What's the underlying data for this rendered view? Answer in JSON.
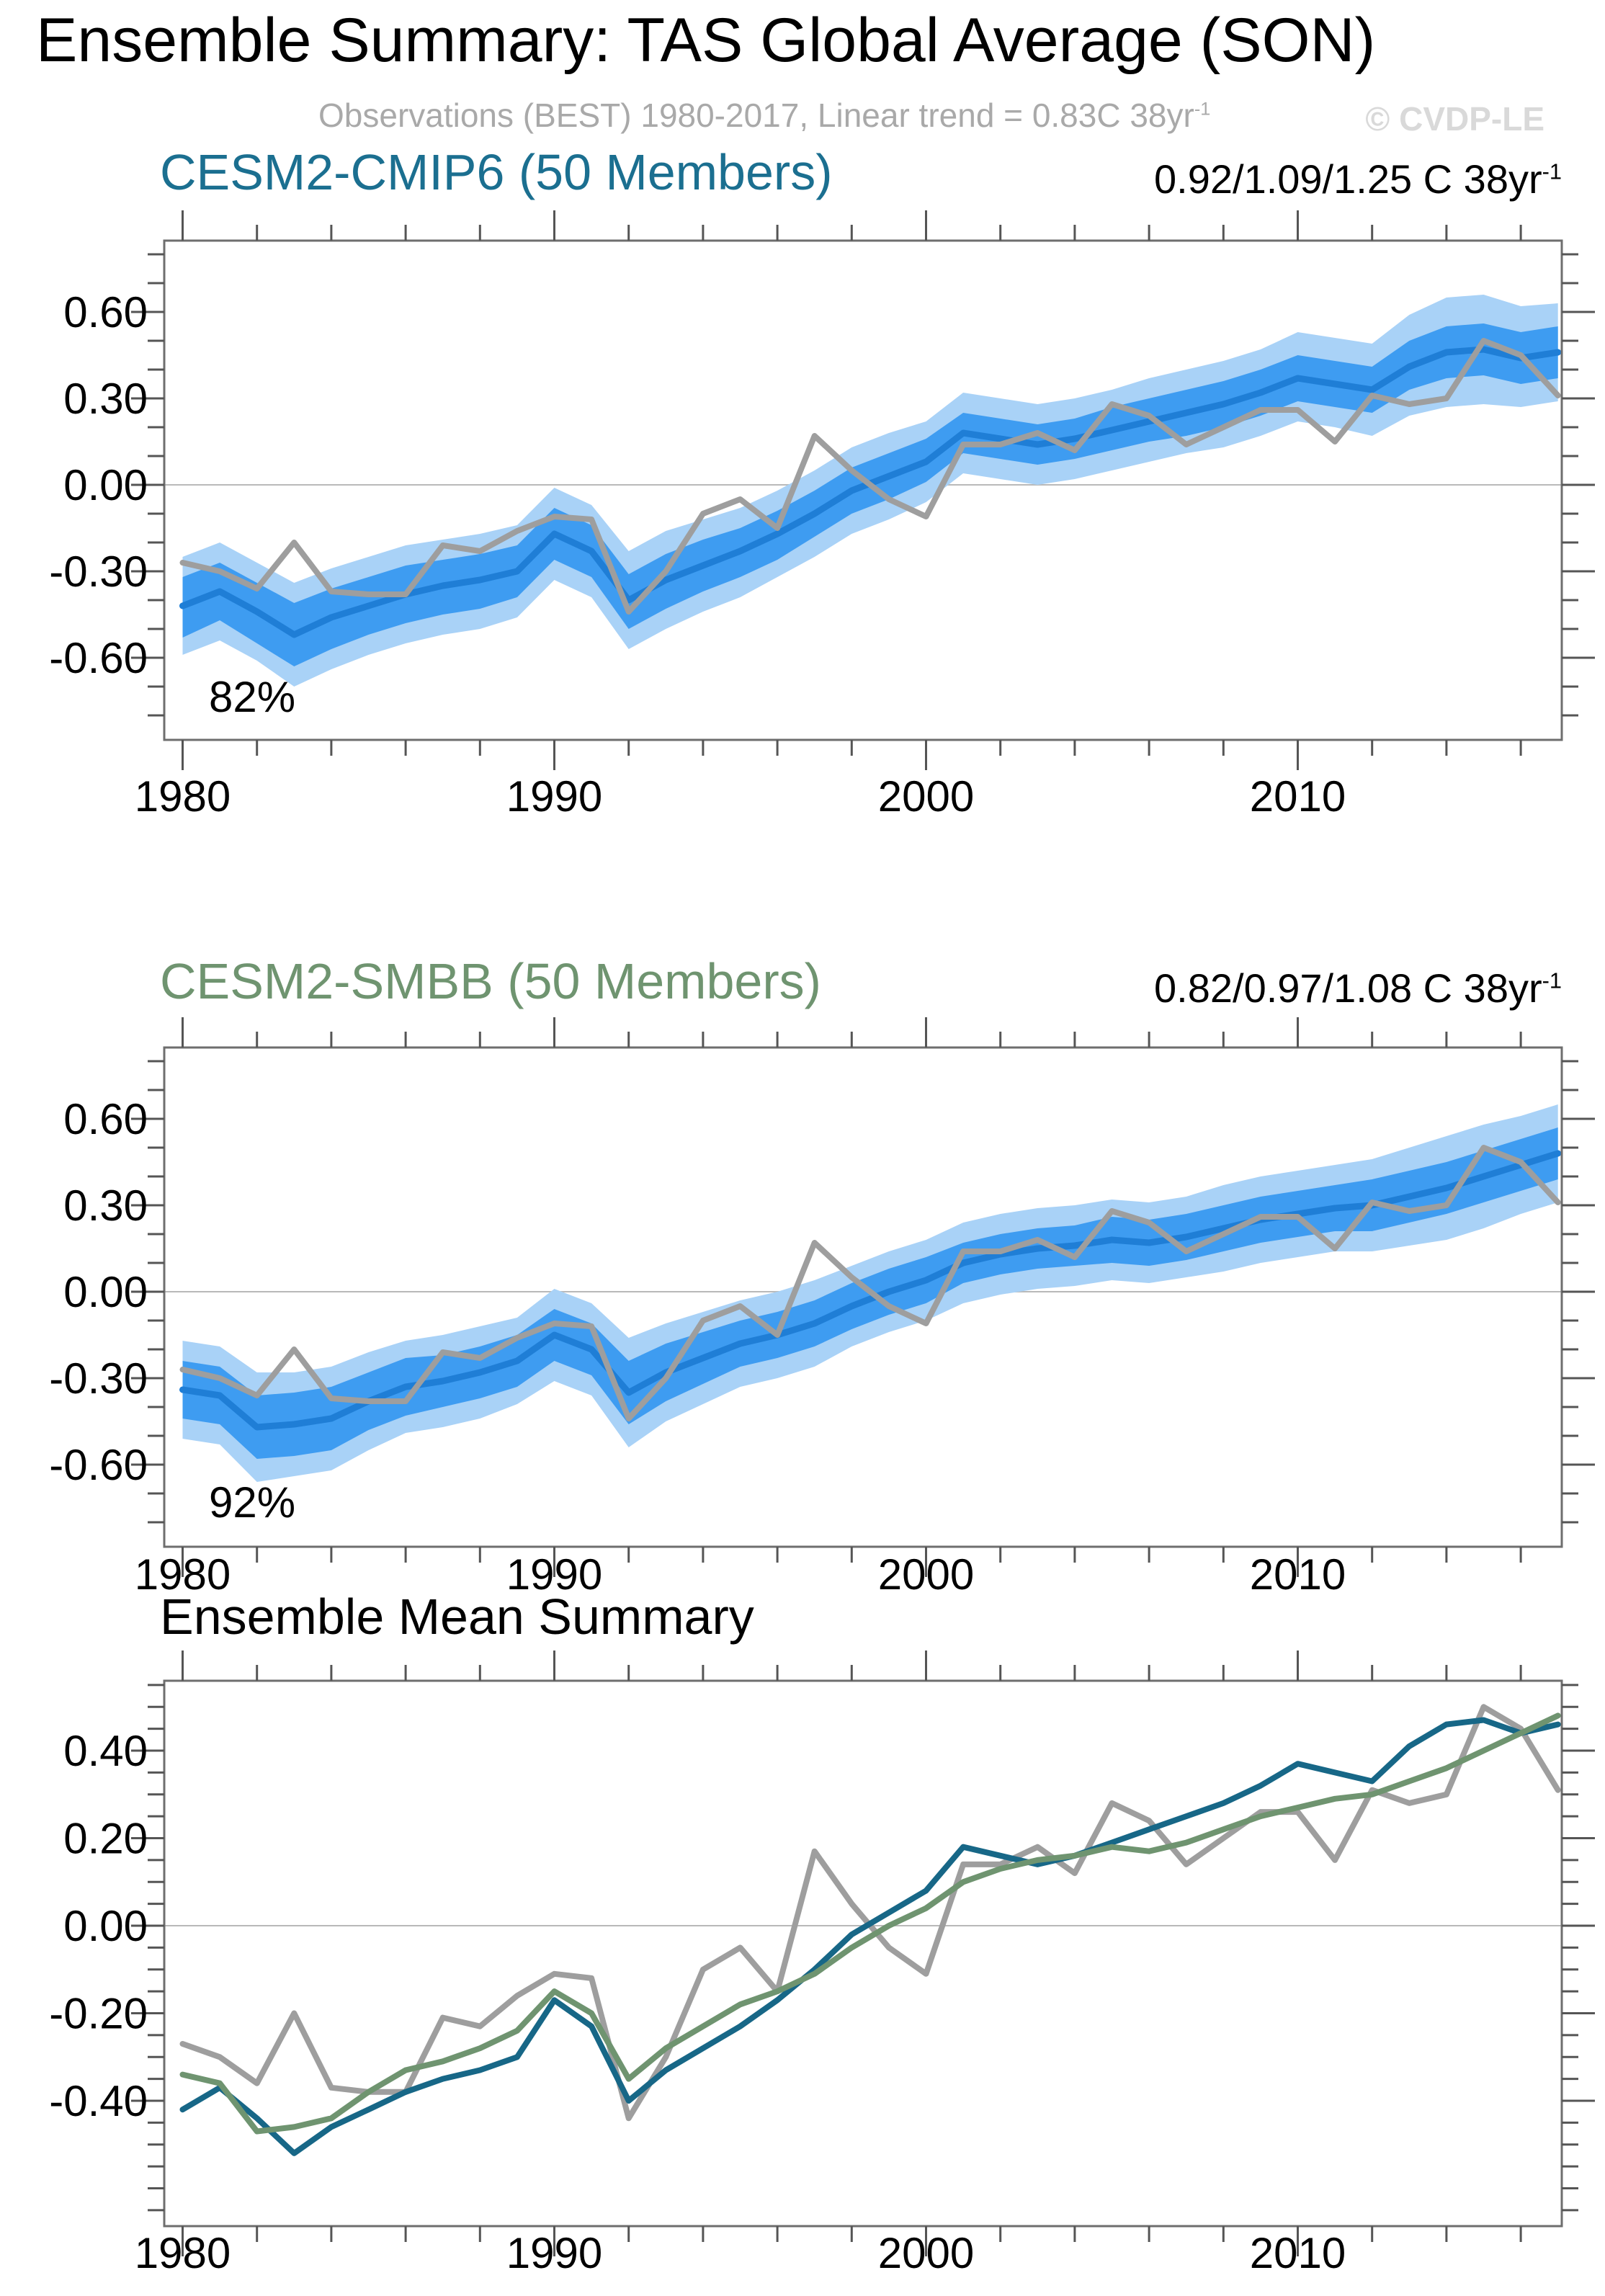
{
  "header": {
    "title": "Ensemble Summary: TAS Global Average (SON)",
    "subtitle": "Observations (BEST) 1980-2017, Linear trend = 0.83C 38yr",
    "subtitle_sup": "-1",
    "watermark": "© CVDP-LE"
  },
  "panels": [
    {
      "title": "CESM2-CMIP6 (50 Members)",
      "title_color": "#1b6f90",
      "trend": "0.92/1.09/1.25 C 38yr",
      "trend_sup": "-1",
      "annotation": "82%"
    },
    {
      "title": "CESM2-SMBB (50 Members)",
      "title_color": "#6f9470",
      "trend": "0.82/0.97/1.08 C 38yr",
      "trend_sup": "-1",
      "annotation": "92%"
    },
    {
      "title": "Ensemble Mean Summary"
    }
  ],
  "colors": {
    "outer_band": "#a9d2f7",
    "inner_band": "#3e9cf1",
    "mean_line": "#1f7ed6",
    "obs_line": "#9e9e9e",
    "cmip6_line": "#176787",
    "smbb_line": "#6f9470",
    "zero_line": "#b9b9b9",
    "frame": "#6e6e6e",
    "tick": "#555555"
  },
  "chart_data": [
    {
      "type": "area",
      "id": "cesm2-cmip6",
      "title": "CESM2-CMIP6 (50 Members)",
      "annotation": "82%",
      "x": [
        1980,
        1981,
        1982,
        1983,
        1984,
        1985,
        1986,
        1987,
        1988,
        1989,
        1990,
        1991,
        1992,
        1993,
        1994,
        1995,
        1996,
        1997,
        1998,
        1999,
        2000,
        2001,
        2002,
        2003,
        2004,
        2005,
        2006,
        2007,
        2008,
        2009,
        2010,
        2011,
        2012,
        2013,
        2014,
        2015,
        2016,
        2017
      ],
      "xticks": [
        1980,
        1990,
        2000,
        2010
      ],
      "xtick_minor_step": 2,
      "yticks": [
        0.6,
        0.3,
        0.0,
        -0.3,
        -0.6
      ],
      "ytick_labels": [
        "0.60",
        "0.30",
        "0.00",
        "-0.30",
        "-0.60"
      ],
      "ytick_minor_step": 0.1,
      "ylim": [
        -0.885,
        0.8475
      ],
      "grid_zero_line": true,
      "series": [
        {
          "name": "outer_band_high",
          "values": [
            -0.25,
            -0.2,
            -0.27,
            -0.34,
            -0.29,
            -0.25,
            -0.21,
            -0.19,
            -0.17,
            -0.14,
            -0.01,
            -0.07,
            -0.23,
            -0.16,
            -0.12,
            -0.08,
            -0.02,
            0.05,
            0.13,
            0.18,
            0.22,
            0.32,
            0.3,
            0.28,
            0.3,
            0.33,
            0.37,
            0.4,
            0.43,
            0.47,
            0.53,
            0.51,
            0.49,
            0.59,
            0.65,
            0.66,
            0.62,
            0.63
          ]
        },
        {
          "name": "outer_band_low",
          "values": [
            -0.59,
            -0.54,
            -0.61,
            -0.7,
            -0.64,
            -0.59,
            -0.55,
            -0.52,
            -0.5,
            -0.46,
            -0.33,
            -0.39,
            -0.57,
            -0.5,
            -0.44,
            -0.39,
            -0.32,
            -0.25,
            -0.17,
            -0.12,
            -0.06,
            0.04,
            0.02,
            0.0,
            0.02,
            0.05,
            0.08,
            0.11,
            0.13,
            0.17,
            0.22,
            0.2,
            0.17,
            0.24,
            0.27,
            0.28,
            0.27,
            0.29
          ]
        },
        {
          "name": "inner_band_high",
          "values": [
            -0.32,
            -0.27,
            -0.34,
            -0.41,
            -0.36,
            -0.32,
            -0.28,
            -0.26,
            -0.24,
            -0.21,
            -0.08,
            -0.14,
            -0.31,
            -0.24,
            -0.19,
            -0.15,
            -0.09,
            -0.02,
            0.06,
            0.11,
            0.16,
            0.25,
            0.23,
            0.21,
            0.23,
            0.27,
            0.3,
            0.33,
            0.36,
            0.4,
            0.45,
            0.43,
            0.41,
            0.5,
            0.55,
            0.56,
            0.53,
            0.55
          ]
        },
        {
          "name": "inner_band_low",
          "values": [
            -0.53,
            -0.47,
            -0.55,
            -0.63,
            -0.57,
            -0.52,
            -0.48,
            -0.45,
            -0.43,
            -0.39,
            -0.26,
            -0.32,
            -0.5,
            -0.43,
            -0.37,
            -0.32,
            -0.26,
            -0.18,
            -0.1,
            -0.05,
            0.01,
            0.11,
            0.09,
            0.07,
            0.09,
            0.12,
            0.15,
            0.17,
            0.2,
            0.24,
            0.29,
            0.27,
            0.25,
            0.33,
            0.37,
            0.38,
            0.35,
            0.37
          ]
        },
        {
          "name": "ensemble_mean",
          "values": [
            -0.42,
            -0.37,
            -0.44,
            -0.52,
            -0.46,
            -0.42,
            -0.38,
            -0.35,
            -0.33,
            -0.3,
            -0.17,
            -0.23,
            -0.4,
            -0.33,
            -0.28,
            -0.23,
            -0.17,
            -0.1,
            -0.02,
            0.03,
            0.08,
            0.18,
            0.16,
            0.14,
            0.16,
            0.19,
            0.22,
            0.25,
            0.28,
            0.32,
            0.37,
            0.35,
            0.33,
            0.41,
            0.46,
            0.47,
            0.44,
            0.46
          ]
        },
        {
          "name": "observations_best",
          "values": [
            -0.27,
            -0.3,
            -0.36,
            -0.2,
            -0.37,
            -0.38,
            -0.38,
            -0.21,
            -0.23,
            -0.16,
            -0.11,
            -0.12,
            -0.44,
            -0.3,
            -0.1,
            -0.05,
            -0.15,
            0.17,
            0.05,
            -0.05,
            -0.11,
            0.14,
            0.14,
            0.18,
            0.12,
            0.28,
            0.24,
            0.14,
            0.2,
            0.26,
            0.26,
            0.15,
            0.31,
            0.28,
            0.3,
            0.5,
            0.45,
            0.31
          ]
        }
      ]
    },
    {
      "type": "area",
      "id": "cesm2-smbb",
      "title": "CESM2-SMBB (50 Members)",
      "annotation": "92%",
      "x": [
        1980,
        1981,
        1982,
        1983,
        1984,
        1985,
        1986,
        1987,
        1988,
        1989,
        1990,
        1991,
        1992,
        1993,
        1994,
        1995,
        1996,
        1997,
        1998,
        1999,
        2000,
        2001,
        2002,
        2003,
        2004,
        2005,
        2006,
        2007,
        2008,
        2009,
        2010,
        2011,
        2012,
        2013,
        2014,
        2015,
        2016,
        2017
      ],
      "xticks": [
        1980,
        1990,
        2000,
        2010
      ],
      "xtick_minor_step": 2,
      "yticks": [
        0.6,
        0.3,
        0.0,
        -0.3,
        -0.6
      ],
      "ytick_labels": [
        "0.60",
        "0.30",
        "0.00",
        "-0.30",
        "-0.60"
      ],
      "ytick_minor_step": 0.1,
      "ylim": [
        -0.885,
        0.8475
      ],
      "grid_zero_line": true,
      "series": [
        {
          "name": "outer_band_high",
          "values": [
            -0.17,
            -0.19,
            -0.28,
            -0.28,
            -0.26,
            -0.21,
            -0.17,
            -0.15,
            -0.12,
            -0.09,
            0.01,
            -0.04,
            -0.16,
            -0.11,
            -0.07,
            -0.03,
            0.0,
            0.04,
            0.09,
            0.14,
            0.18,
            0.24,
            0.27,
            0.29,
            0.3,
            0.32,
            0.31,
            0.33,
            0.37,
            0.4,
            0.42,
            0.44,
            0.46,
            0.5,
            0.54,
            0.58,
            0.61,
            0.65
          ]
        },
        {
          "name": "outer_band_low",
          "values": [
            -0.51,
            -0.53,
            -0.66,
            -0.64,
            -0.62,
            -0.55,
            -0.49,
            -0.47,
            -0.44,
            -0.39,
            -0.31,
            -0.36,
            -0.54,
            -0.45,
            -0.39,
            -0.33,
            -0.3,
            -0.26,
            -0.19,
            -0.14,
            -0.1,
            -0.04,
            -0.01,
            0.01,
            0.02,
            0.04,
            0.03,
            0.05,
            0.07,
            0.1,
            0.12,
            0.14,
            0.14,
            0.16,
            0.18,
            0.22,
            0.27,
            0.31
          ]
        },
        {
          "name": "inner_band_high",
          "values": [
            -0.24,
            -0.26,
            -0.36,
            -0.35,
            -0.33,
            -0.28,
            -0.23,
            -0.22,
            -0.19,
            -0.15,
            -0.06,
            -0.11,
            -0.24,
            -0.18,
            -0.14,
            -0.1,
            -0.07,
            -0.03,
            0.03,
            0.08,
            0.12,
            0.17,
            0.2,
            0.22,
            0.23,
            0.26,
            0.25,
            0.27,
            0.3,
            0.33,
            0.35,
            0.37,
            0.39,
            0.42,
            0.45,
            0.49,
            0.53,
            0.57
          ]
        },
        {
          "name": "inner_band_low",
          "values": [
            -0.44,
            -0.46,
            -0.58,
            -0.57,
            -0.55,
            -0.48,
            -0.43,
            -0.4,
            -0.37,
            -0.33,
            -0.24,
            -0.29,
            -0.46,
            -0.38,
            -0.32,
            -0.26,
            -0.23,
            -0.19,
            -0.13,
            -0.08,
            -0.04,
            0.03,
            0.06,
            0.08,
            0.09,
            0.1,
            0.09,
            0.11,
            0.14,
            0.17,
            0.19,
            0.21,
            0.21,
            0.24,
            0.27,
            0.31,
            0.35,
            0.39
          ]
        },
        {
          "name": "ensemble_mean",
          "values": [
            -0.34,
            -0.36,
            -0.47,
            -0.46,
            -0.44,
            -0.38,
            -0.33,
            -0.31,
            -0.28,
            -0.24,
            -0.15,
            -0.2,
            -0.35,
            -0.28,
            -0.23,
            -0.18,
            -0.15,
            -0.11,
            -0.05,
            0.0,
            0.04,
            0.1,
            0.13,
            0.15,
            0.16,
            0.18,
            0.17,
            0.19,
            0.22,
            0.25,
            0.27,
            0.29,
            0.3,
            0.33,
            0.36,
            0.4,
            0.44,
            0.48
          ]
        },
        {
          "name": "observations_best",
          "values": [
            -0.27,
            -0.3,
            -0.36,
            -0.2,
            -0.37,
            -0.38,
            -0.38,
            -0.21,
            -0.23,
            -0.16,
            -0.11,
            -0.12,
            -0.44,
            -0.3,
            -0.1,
            -0.05,
            -0.15,
            0.17,
            0.05,
            -0.05,
            -0.11,
            0.14,
            0.14,
            0.18,
            0.12,
            0.28,
            0.24,
            0.14,
            0.2,
            0.26,
            0.26,
            0.15,
            0.31,
            0.28,
            0.3,
            0.5,
            0.45,
            0.31
          ]
        }
      ]
    },
    {
      "type": "line",
      "id": "ensemble-mean-summary",
      "title": "Ensemble Mean Summary",
      "x": [
        1980,
        1981,
        1982,
        1983,
        1984,
        1985,
        1986,
        1987,
        1988,
        1989,
        1990,
        1991,
        1992,
        1993,
        1994,
        1995,
        1996,
        1997,
        1998,
        1999,
        2000,
        2001,
        2002,
        2003,
        2004,
        2005,
        2006,
        2007,
        2008,
        2009,
        2010,
        2011,
        2012,
        2013,
        2014,
        2015,
        2016,
        2017
      ],
      "xticks": [
        1980,
        1990,
        2000,
        2010
      ],
      "xtick_minor_step": 2,
      "yticks": [
        0.4,
        0.2,
        0.0,
        -0.2,
        -0.4
      ],
      "ytick_labels": [
        "0.40",
        "0.20",
        "0.00",
        "-0.20",
        "-0.40"
      ],
      "ytick_minor_step": 0.05,
      "ylim": [
        -0.686,
        0.559
      ],
      "grid_zero_line": true,
      "series": [
        {
          "name": "observations_best",
          "values": [
            -0.27,
            -0.3,
            -0.36,
            -0.2,
            -0.37,
            -0.38,
            -0.38,
            -0.21,
            -0.23,
            -0.16,
            -0.11,
            -0.12,
            -0.44,
            -0.3,
            -0.1,
            -0.05,
            -0.15,
            0.17,
            0.05,
            -0.05,
            -0.11,
            0.14,
            0.14,
            0.18,
            0.12,
            0.28,
            0.24,
            0.14,
            0.2,
            0.26,
            0.26,
            0.15,
            0.31,
            0.28,
            0.3,
            0.5,
            0.45,
            0.31
          ]
        },
        {
          "name": "cesm2_cmip6_mean",
          "values": [
            -0.42,
            -0.37,
            -0.44,
            -0.52,
            -0.46,
            -0.42,
            -0.38,
            -0.35,
            -0.33,
            -0.3,
            -0.17,
            -0.23,
            -0.4,
            -0.33,
            -0.28,
            -0.23,
            -0.17,
            -0.1,
            -0.02,
            0.03,
            0.08,
            0.18,
            0.16,
            0.14,
            0.16,
            0.19,
            0.22,
            0.25,
            0.28,
            0.32,
            0.37,
            0.35,
            0.33,
            0.41,
            0.46,
            0.47,
            0.44,
            0.46
          ]
        },
        {
          "name": "cesm2_smbb_mean",
          "values": [
            -0.34,
            -0.36,
            -0.47,
            -0.46,
            -0.44,
            -0.38,
            -0.33,
            -0.31,
            -0.28,
            -0.24,
            -0.15,
            -0.2,
            -0.35,
            -0.28,
            -0.23,
            -0.18,
            -0.15,
            -0.11,
            -0.05,
            0.0,
            0.04,
            0.1,
            0.13,
            0.15,
            0.16,
            0.18,
            0.17,
            0.19,
            0.22,
            0.25,
            0.27,
            0.29,
            0.3,
            0.33,
            0.36,
            0.4,
            0.44,
            0.48
          ]
        }
      ]
    }
  ]
}
